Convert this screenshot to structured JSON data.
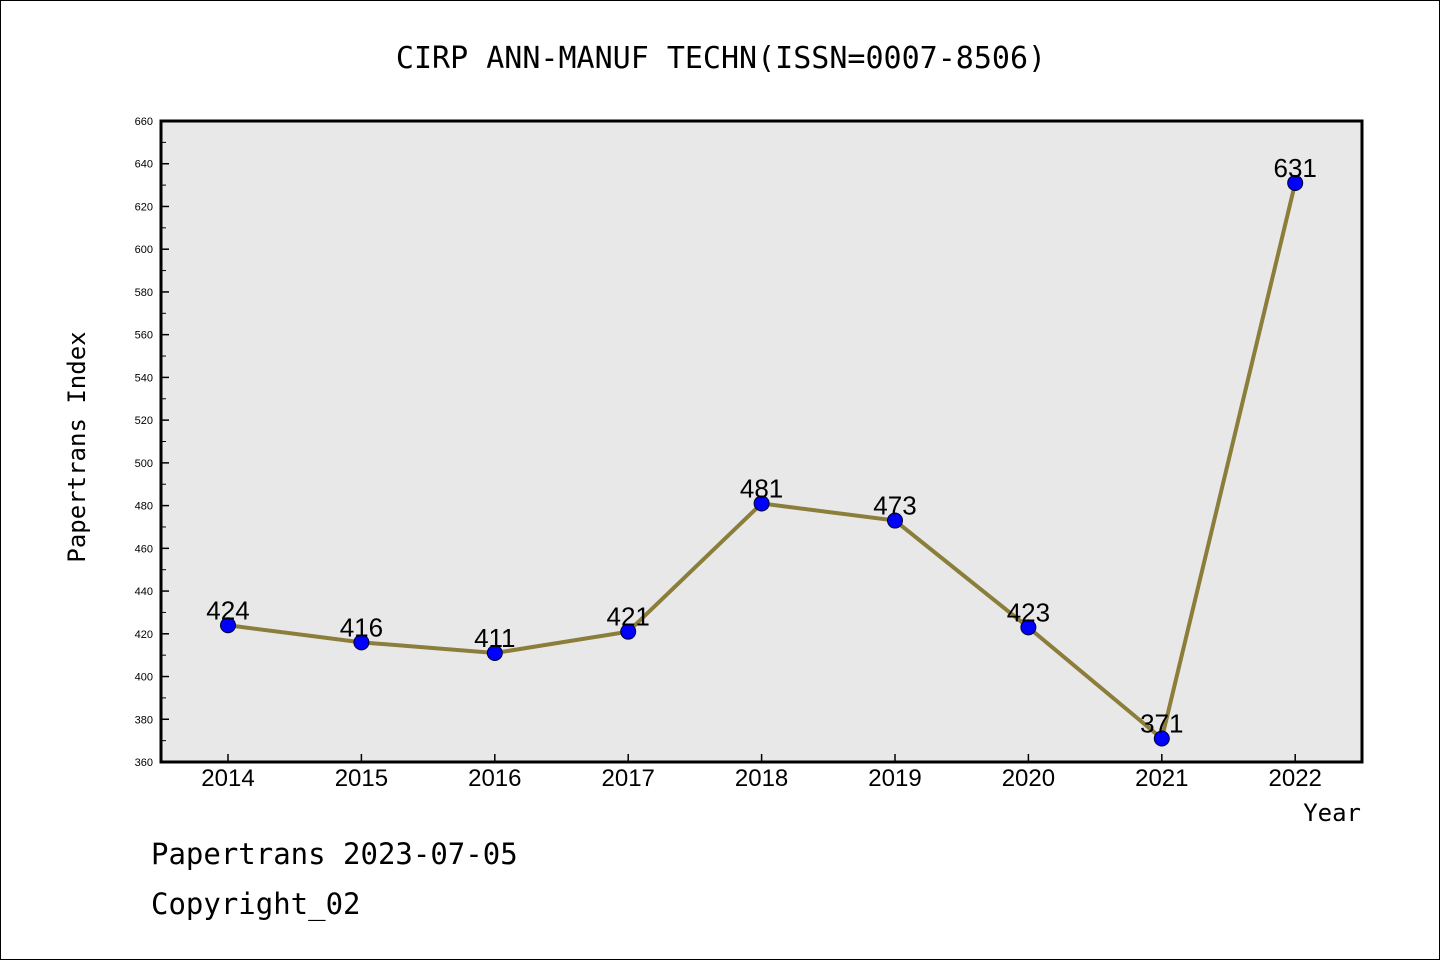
{
  "chart_data": {
    "type": "line",
    "title": "CIRP ANN-MANUF TECHN(ISSN=0007-8506)",
    "xlabel": "Year",
    "ylabel": "Papertrans Index",
    "ylim": [
      360,
      660
    ],
    "y_ticks": [
      360,
      380,
      400,
      420,
      440,
      460,
      480,
      500,
      520,
      540,
      560,
      580,
      600,
      620,
      640,
      660
    ],
    "categories": [
      "2014",
      "2015",
      "2016",
      "2017",
      "2018",
      "2019",
      "2020",
      "2021",
      "2022"
    ],
    "series": [
      {
        "values": [
          424,
          416,
          411,
          421,
          481,
          473,
          423,
          371,
          631
        ]
      }
    ],
    "grid": false,
    "colors": {
      "line": "#8b7d3a",
      "marker": "#0000ff",
      "plot_background": "#e8e8e8"
    }
  },
  "footer": {
    "source": "Papertrans 2023-07-05",
    "copyright": "Copyright_02"
  }
}
